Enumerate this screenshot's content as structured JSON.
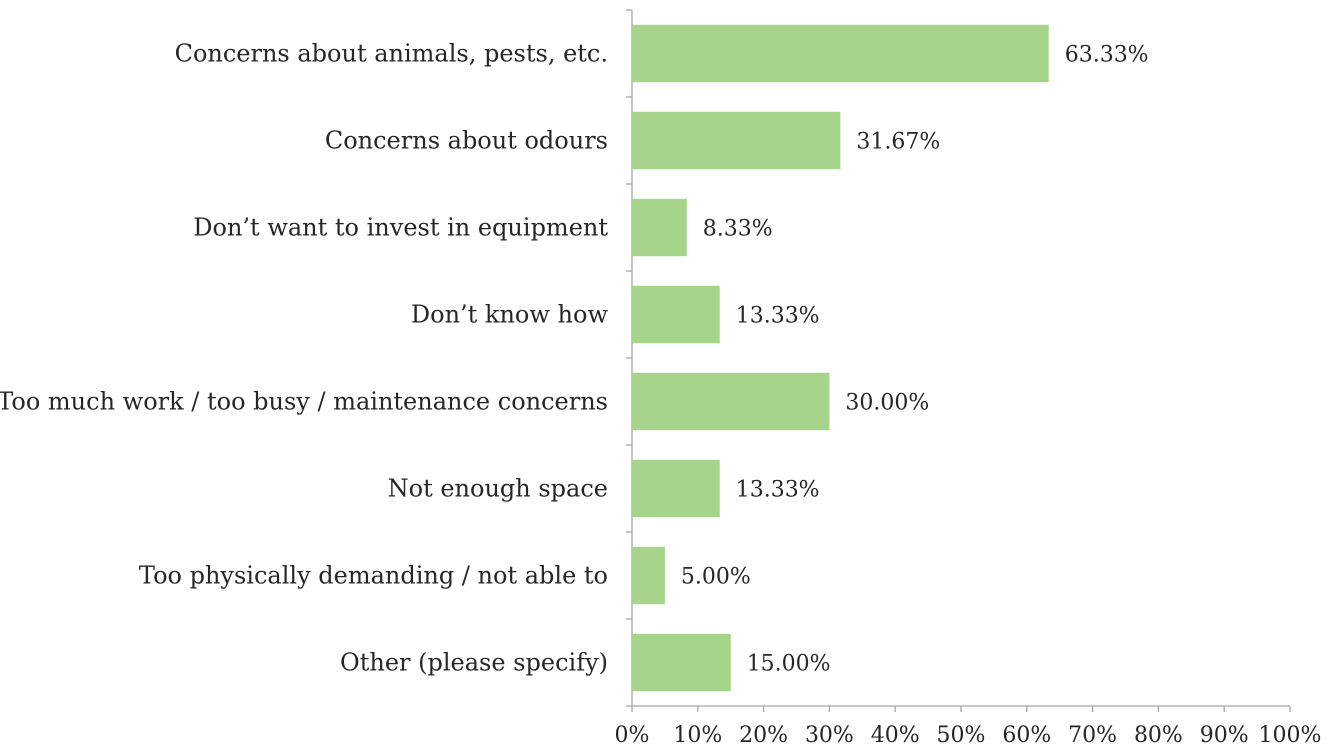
{
  "chart_data": {
    "type": "bar",
    "orientation": "horizontal",
    "categories": [
      "Concerns about animals, pests, etc.",
      "Concerns about odours",
      "Don’t want to invest in equipment",
      "Don’t know how",
      "Too much work / too busy / maintenance concerns",
      "Not enough space",
      "Too physically demanding / not able to",
      "Other (please specify)"
    ],
    "values": [
      63.33,
      31.67,
      8.33,
      13.33,
      30.0,
      13.33,
      5.0,
      15.0
    ],
    "data_labels": [
      "63.33%",
      "31.67%",
      "8.33%",
      "13.33%",
      "30.00%",
      "13.33%",
      "5.00%",
      "15.00%"
    ],
    "xlim": [
      0,
      100
    ],
    "x_ticks": [
      0,
      10,
      20,
      30,
      40,
      50,
      60,
      70,
      80,
      90,
      100
    ],
    "x_tick_labels": [
      "0%",
      "10%",
      "20%",
      "30%",
      "40%",
      "50%",
      "60%",
      "70%",
      "80%",
      "90%",
      "100%"
    ],
    "grid": false,
    "legend": "none",
    "colors": {
      "bar": "#a6d48a",
      "axis": "#a6a6a6",
      "text": "#262626"
    }
  }
}
